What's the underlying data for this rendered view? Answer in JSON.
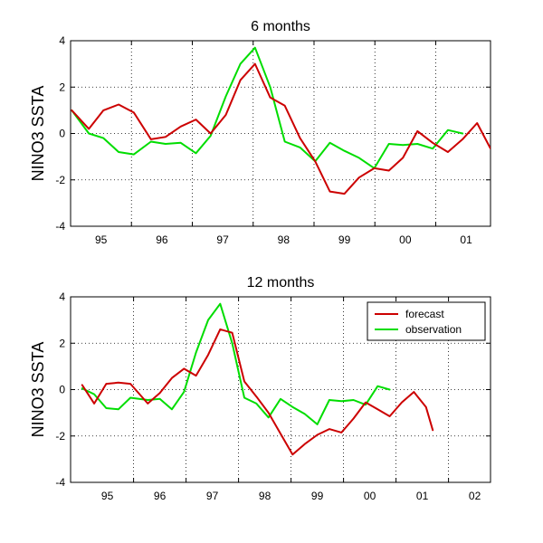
{
  "colors": {
    "forecast": "#cc0000",
    "observation": "#00dd00"
  },
  "chart_data": [
    {
      "type": "line",
      "title": "6 months",
      "ylabel": "NINO3 SSTA",
      "xlabel": "",
      "xlim": [
        1994.5,
        2001.4
      ],
      "ylim": [
        -4,
        4
      ],
      "yticks": [
        -4,
        -2,
        0,
        2,
        4
      ],
      "xtick_labels": [
        {
          "x": 1995,
          "label": "95"
        },
        {
          "x": 1996,
          "label": "96"
        },
        {
          "x": 1997,
          "label": "97"
        },
        {
          "x": 1998,
          "label": "98"
        },
        {
          "x": 1999,
          "label": "99"
        },
        {
          "x": 2000,
          "label": "00"
        },
        {
          "x": 2001,
          "label": "01"
        }
      ],
      "xgrid": [
        1995.5,
        1996.5,
        1997.5,
        1998.5,
        1999.5,
        2000.5
      ],
      "ygrid": [
        -2,
        0,
        2
      ],
      "legend": null,
      "series": [
        {
          "name": "forecast",
          "points": [
            [
              1994.52,
              1.0
            ],
            [
              1994.8,
              0.2
            ],
            [
              1995.04,
              1.0
            ],
            [
              1995.29,
              1.25
            ],
            [
              1995.54,
              0.9
            ],
            [
              1995.82,
              -0.25
            ],
            [
              1996.06,
              -0.15
            ],
            [
              1996.31,
              0.3
            ],
            [
              1996.56,
              0.6
            ],
            [
              1996.8,
              0.0
            ],
            [
              1997.05,
              0.8
            ],
            [
              1997.29,
              2.3
            ],
            [
              1997.53,
              3.0
            ],
            [
              1997.78,
              1.55
            ],
            [
              1998.02,
              1.2
            ],
            [
              1998.27,
              -0.2
            ],
            [
              1998.52,
              -1.2
            ],
            [
              1998.76,
              -2.5
            ],
            [
              1999.0,
              -2.6
            ],
            [
              1999.24,
              -1.9
            ],
            [
              1999.49,
              -1.5
            ],
            [
              1999.73,
              -1.6
            ],
            [
              1999.96,
              -1.05
            ],
            [
              2000.2,
              0.1
            ],
            [
              2000.45,
              -0.4
            ],
            [
              2000.7,
              -0.8
            ],
            [
              2000.94,
              -0.25
            ],
            [
              2001.18,
              0.45
            ],
            [
              2001.4,
              -0.65
            ]
          ]
        },
        {
          "name": "observation",
          "points": [
            [
              1994.52,
              1.0
            ],
            [
              1994.8,
              0.0
            ],
            [
              1995.04,
              -0.2
            ],
            [
              1995.29,
              -0.8
            ],
            [
              1995.54,
              -0.9
            ],
            [
              1995.82,
              -0.35
            ],
            [
              1996.06,
              -0.45
            ],
            [
              1996.31,
              -0.4
            ],
            [
              1996.56,
              -0.85
            ],
            [
              1996.8,
              -0.1
            ],
            [
              1997.05,
              1.6
            ],
            [
              1997.29,
              3.0
            ],
            [
              1997.53,
              3.7
            ],
            [
              1997.78,
              2.0
            ],
            [
              1998.02,
              -0.35
            ],
            [
              1998.27,
              -0.6
            ],
            [
              1998.52,
              -1.2
            ],
            [
              1998.76,
              -0.4
            ],
            [
              1999.0,
              -0.75
            ],
            [
              1999.24,
              -1.05
            ],
            [
              1999.49,
              -1.5
            ],
            [
              1999.73,
              -0.45
            ],
            [
              1999.96,
              -0.5
            ],
            [
              2000.2,
              -0.45
            ],
            [
              2000.45,
              -0.65
            ],
            [
              2000.7,
              0.15
            ],
            [
              2000.94,
              0.0
            ]
          ]
        }
      ]
    },
    {
      "type": "line",
      "title": "12 months",
      "ylabel": "NINO3 SSTA",
      "xlabel": "",
      "xlim": [
        1994.3,
        2002.3
      ],
      "ylim": [
        -4,
        4
      ],
      "yticks": [
        -4,
        -2,
        0,
        2,
        4
      ],
      "xtick_labels": [
        {
          "x": 1995,
          "label": "95"
        },
        {
          "x": 1996,
          "label": "96"
        },
        {
          "x": 1997,
          "label": "97"
        },
        {
          "x": 1998,
          "label": "98"
        },
        {
          "x": 1999,
          "label": "99"
        },
        {
          "x": 2000,
          "label": "00"
        },
        {
          "x": 2001,
          "label": "01"
        },
        {
          "x": 2002,
          "label": "02"
        }
      ],
      "xgrid": [
        1995.5,
        1996.5,
        1997.5,
        1998.5,
        1999.5,
        2000.5,
        2001.5
      ],
      "ygrid": [
        -2,
        0,
        2
      ],
      "legend": {
        "placement": "top-right",
        "entries": [
          "forecast",
          "observation"
        ]
      },
      "series": [
        {
          "name": "forecast",
          "points": [
            [
              1994.52,
              0.2
            ],
            [
              1994.75,
              -0.6
            ],
            [
              1994.98,
              0.25
            ],
            [
              1995.21,
              0.3
            ],
            [
              1995.44,
              0.25
            ],
            [
              1995.77,
              -0.6
            ],
            [
              1996.0,
              -0.15
            ],
            [
              1996.23,
              0.5
            ],
            [
              1996.46,
              0.9
            ],
            [
              1996.69,
              0.6
            ],
            [
              1996.92,
              1.5
            ],
            [
              1997.15,
              2.6
            ],
            [
              1997.38,
              2.45
            ],
            [
              1997.61,
              0.35
            ],
            [
              1997.84,
              -0.3
            ],
            [
              1998.07,
              -1.0
            ],
            [
              1998.3,
              -1.9
            ],
            [
              1998.53,
              -2.8
            ],
            [
              1998.76,
              -2.35
            ],
            [
              1999.0,
              -1.95
            ],
            [
              1999.23,
              -1.7
            ],
            [
              1999.46,
              -1.85
            ],
            [
              1999.69,
              -1.25
            ],
            [
              1999.92,
              -0.55
            ],
            [
              2000.15,
              -0.85
            ],
            [
              2000.38,
              -1.15
            ],
            [
              2000.61,
              -0.55
            ],
            [
              2000.84,
              -0.1
            ],
            [
              2001.07,
              -0.75
            ],
            [
              2001.2,
              -1.75
            ]
          ]
        },
        {
          "name": "observation",
          "points": [
            [
              1994.52,
              0.05
            ],
            [
              1994.75,
              -0.2
            ],
            [
              1994.98,
              -0.8
            ],
            [
              1995.21,
              -0.85
            ],
            [
              1995.44,
              -0.35
            ],
            [
              1995.77,
              -0.45
            ],
            [
              1996.0,
              -0.4
            ],
            [
              1996.23,
              -0.85
            ],
            [
              1996.46,
              -0.1
            ],
            [
              1996.69,
              1.6
            ],
            [
              1996.92,
              3.0
            ],
            [
              1997.15,
              3.7
            ],
            [
              1997.38,
              2.0
            ],
            [
              1997.61,
              -0.35
            ],
            [
              1997.84,
              -0.6
            ],
            [
              1998.07,
              -1.2
            ],
            [
              1998.3,
              -0.4
            ],
            [
              1998.53,
              -0.75
            ],
            [
              1998.76,
              -1.05
            ],
            [
              1999.0,
              -1.5
            ],
            [
              1999.23,
              -0.45
            ],
            [
              1999.46,
              -0.5
            ],
            [
              1999.69,
              -0.45
            ],
            [
              1999.92,
              -0.65
            ],
            [
              2000.15,
              0.15
            ],
            [
              2000.38,
              0.0
            ]
          ]
        }
      ]
    }
  ]
}
